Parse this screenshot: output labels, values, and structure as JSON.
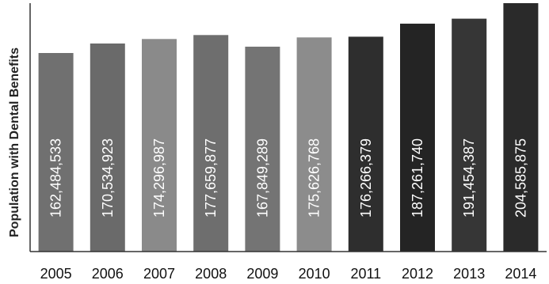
{
  "chart_data": {
    "type": "bar",
    "title": "",
    "xlabel": "",
    "ylabel": "Population with Dental Benefits",
    "categories": [
      "2005",
      "2006",
      "2007",
      "2008",
      "2009",
      "2010",
      "2011",
      "2012",
      "2013",
      "2014"
    ],
    "values": [
      162484533,
      170534923,
      174296987,
      177659877,
      167849289,
      175626768,
      176266379,
      187261740,
      191454387,
      204585875
    ],
    "data_labels": [
      "162,484,533",
      "170,534,923",
      "174,296,987",
      "177,659,877",
      "167,849,289",
      "175,626,768",
      "176,266,379",
      "187,261,740",
      "191,454,387",
      "204,585,875"
    ],
    "bar_colors": [
      "#707070",
      "#6a6a6a",
      "#8a8a8a",
      "#6e6e6e",
      "#747474",
      "#8c8c8c",
      "#2e2e2e",
      "#242424",
      "#363636",
      "#2a2a2a"
    ],
    "ylim": [
      0,
      204585875
    ],
    "grid": false,
    "legend": "none"
  }
}
